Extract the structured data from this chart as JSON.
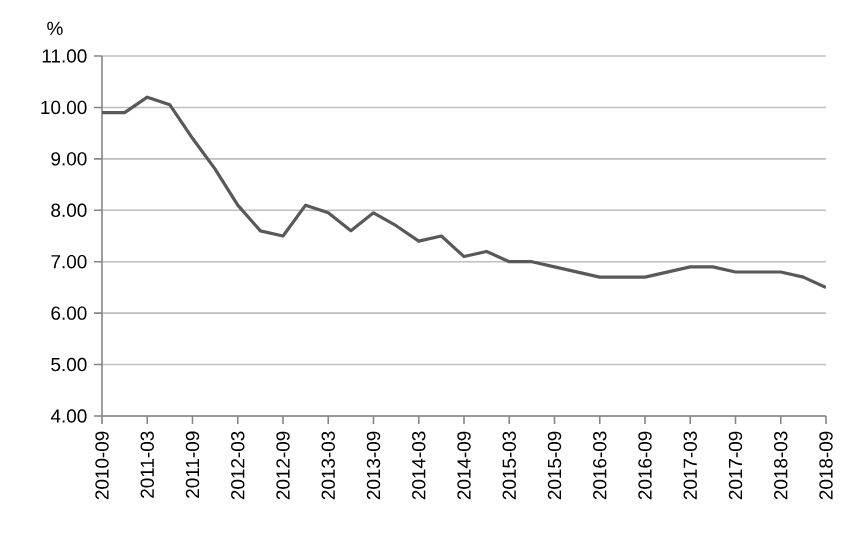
{
  "chart_data": {
    "type": "line",
    "ylabel": "%",
    "categories": [
      "2010-09",
      null,
      "2011-03",
      null,
      "2011-09",
      null,
      "2012-03",
      null,
      "2012-09",
      null,
      "2013-03",
      null,
      "2013-09",
      null,
      "2014-03",
      null,
      "2014-09",
      null,
      "2015-03",
      null,
      "2015-09",
      null,
      "2016-03",
      null,
      "2016-09",
      null,
      "2017-03",
      null,
      "2017-09",
      null,
      "2018-03",
      null,
      "2018-09"
    ],
    "series": [
      {
        "color": "#595959",
        "values": [
          9.9,
          9.9,
          10.2,
          10.05,
          9.4,
          8.8,
          8.1,
          7.6,
          7.5,
          8.1,
          7.95,
          7.6,
          7.95,
          7.7,
          7.4,
          7.5,
          7.1,
          7.2,
          7.0,
          7.0,
          6.9,
          6.8,
          6.7,
          6.7,
          6.7,
          6.8,
          6.9,
          6.9,
          6.8,
          6.8,
          6.8,
          6.7,
          6.5
        ]
      }
    ],
    "ylim": [
      4,
      11
    ],
    "yticks": [
      {
        "value": 4,
        "label": "4.00"
      },
      {
        "value": 5,
        "label": "5.00"
      },
      {
        "value": 6,
        "label": "6.00"
      },
      {
        "value": 7,
        "label": "7.00"
      },
      {
        "value": 8,
        "label": "8.00"
      },
      {
        "value": 9,
        "label": "9.00"
      },
      {
        "value": 10,
        "label": "10.00"
      },
      {
        "value": 11,
        "label": "11.00"
      }
    ],
    "grid": "y",
    "marker": "none",
    "line_style": "solid"
  }
}
